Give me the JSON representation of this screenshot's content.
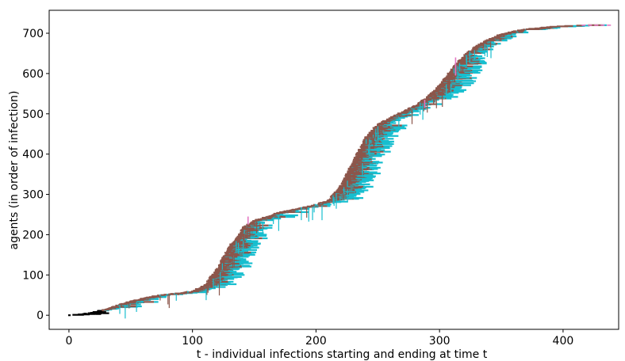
{
  "chart_data": {
    "type": "line",
    "xlabel": "t - individual infections starting and ending at time t",
    "ylabel": "agents (in order of infection)",
    "xlim": [
      -16,
      445
    ],
    "ylim": [
      -35,
      757
    ],
    "xticks": [
      0,
      100,
      200,
      300,
      400
    ],
    "yticks": [
      0,
      100,
      200,
      300,
      400,
      500,
      600,
      700
    ],
    "grid": false,
    "legend": "none",
    "colors": {
      "phase_a": "#8c564b",
      "phase_b": "#17becf",
      "phase_c": "#e377c2",
      "phase_d": "#000000"
    },
    "series": [
      {
        "x": [
          0,
          10,
          20,
          30,
          40,
          50,
          60,
          70,
          80,
          90,
          100,
          110,
          120,
          130,
          140,
          150,
          160,
          170,
          180,
          190,
          200,
          210,
          220,
          230,
          240,
          250,
          260,
          270,
          280,
          290,
          300,
          310,
          320,
          330,
          340,
          350,
          360,
          370,
          380,
          390,
          400,
          410,
          420
        ],
        "y": [
          0,
          3,
          8,
          15,
          25,
          35,
          42,
          48,
          52,
          55,
          60,
          75,
          115,
          170,
          215,
          235,
          245,
          255,
          262,
          268,
          275,
          285,
          320,
          380,
          440,
          475,
          490,
          505,
          520,
          540,
          570,
          610,
          645,
          668,
          685,
          698,
          705,
          710,
          713,
          716,
          718,
          719,
          720
        ]
      }
    ],
    "tail_segment": {
      "x": [
        415,
        440
      ],
      "y": [
        720,
        720
      ]
    }
  }
}
